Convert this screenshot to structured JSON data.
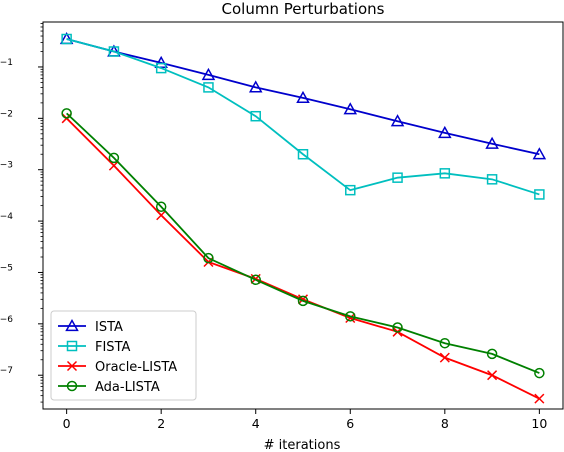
{
  "chart_data": {
    "type": "line",
    "title": "Column Perturbations",
    "xlabel": "# iterations",
    "ylabel": "",
    "y_scale": "log",
    "xlim": [
      -0.5,
      10.5
    ],
    "ylim": [
      2.2e-08,
      0.75
    ],
    "x_ticks": [
      0,
      2,
      4,
      6,
      8,
      10
    ],
    "x_tick_labels": [
      "0",
      "2",
      "4",
      "6",
      "8",
      "10"
    ],
    "y_ticks": [
      1e-07,
      1e-06,
      1e-05,
      0.0001,
      0.001,
      0.01,
      0.1
    ],
    "y_tick_labels": [
      {
        "base": "10",
        "exp": "−7"
      },
      {
        "base": "10",
        "exp": "−6"
      },
      {
        "base": "10",
        "exp": "−5"
      },
      {
        "base": "10",
        "exp": "−4"
      },
      {
        "base": "10",
        "exp": "−3"
      },
      {
        "base": "10",
        "exp": "−2"
      },
      {
        "base": "10",
        "exp": "−1"
      }
    ],
    "grid": false,
    "legend_position": "lower-left",
    "x": [
      0,
      1,
      2,
      3,
      4,
      5,
      6,
      7,
      8,
      9,
      10
    ],
    "series": [
      {
        "name": "ISTA",
        "color": "#0000cc",
        "marker": "triangle",
        "values": [
          0.35,
          0.2,
          0.12,
          0.07,
          0.04,
          0.025,
          0.015,
          0.0088,
          0.0052,
          0.0032,
          0.002
        ]
      },
      {
        "name": "FISTA",
        "color": "#00bfbf",
        "marker": "square",
        "values": [
          0.35,
          0.2,
          0.095,
          0.04,
          0.011,
          0.002,
          0.0004,
          0.0007,
          0.00085,
          0.00065,
          0.00033
        ]
      },
      {
        "name": "Oracle-LISTA",
        "color": "#ff0000",
        "marker": "x",
        "values": [
          0.01,
          0.0012,
          0.00013,
          1.6e-05,
          7.5e-06,
          3e-06,
          1.3e-06,
          7e-07,
          2.2e-07,
          1e-07,
          3.5e-08
        ]
      },
      {
        "name": "Ada-LISTA",
        "color": "#008000",
        "marker": "circle",
        "values": [
          0.0125,
          0.0017,
          0.00019,
          1.9e-05,
          7.2e-06,
          2.8e-06,
          1.4e-06,
          8.5e-07,
          4.2e-07,
          2.6e-07,
          1.1e-07
        ]
      }
    ]
  }
}
